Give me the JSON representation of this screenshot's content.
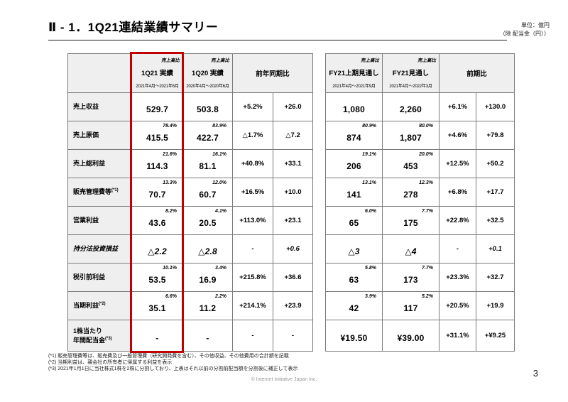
{
  "slide": {
    "title": "Ⅱ - 1．1Q21連結業績サマリー",
    "unit_note_line1": "単位：億円",
    "unit_note_line2": "（除 配当金（円））",
    "copyright": "© Internet Initiative Japan Inc.",
    "page_number": "3"
  },
  "table": {
    "header": {
      "ratio_label": "売上高比",
      "col_1q21": {
        "title": "1Q21 実績",
        "period": "2021年4月～2021年6月"
      },
      "col_1q20": {
        "title": "1Q20 実績",
        "period": "2020年4月～2020年6月"
      },
      "col_yoy": {
        "title": "前年同期比"
      },
      "col_h1fy21": {
        "title": "FY21上期見通し",
        "period": "2021年4月～2021年9月"
      },
      "col_fy21": {
        "title": "FY21見通し",
        "period": "2021年4月～2022年3月"
      },
      "col_prev": {
        "title": "前期比"
      }
    },
    "highlight_color": "#c00000",
    "rows": [
      {
        "label": "売上収益",
        "sup": "",
        "italic": false,
        "q121": {
          "ratio": "",
          "value": "529.7"
        },
        "q120": {
          "ratio": "",
          "value": "503.8"
        },
        "yoy_pct": "+5.2%",
        "yoy_abs": "+26.0",
        "h1fy21": {
          "ratio": "",
          "value": "1,080"
        },
        "fy21": {
          "ratio": "",
          "value": "2,260"
        },
        "prev_pct": "+6.1%",
        "prev_abs": "+130.0"
      },
      {
        "label": "売上原価",
        "sup": "",
        "italic": false,
        "q121": {
          "ratio": "78.4%",
          "value": "415.5"
        },
        "q120": {
          "ratio": "83.9%",
          "value": "422.7"
        },
        "yoy_pct": "△1.7%",
        "yoy_abs": "△7.2",
        "h1fy21": {
          "ratio": "80.9%",
          "value": "874"
        },
        "fy21": {
          "ratio": "80.0%",
          "value": "1,807"
        },
        "prev_pct": "+4.6%",
        "prev_abs": "+79.8"
      },
      {
        "label": "売上総利益",
        "sup": "",
        "italic": false,
        "q121": {
          "ratio": "21.6%",
          "value": "114.3"
        },
        "q120": {
          "ratio": "16.1%",
          "value": "81.1"
        },
        "yoy_pct": "+40.8%",
        "yoy_abs": "+33.1",
        "h1fy21": {
          "ratio": "19.1%",
          "value": "206"
        },
        "fy21": {
          "ratio": "20.0%",
          "value": "453"
        },
        "prev_pct": "+12.5%",
        "prev_abs": "+50.2"
      },
      {
        "label": "販売管理費等",
        "sup": "(*1)",
        "italic": false,
        "q121": {
          "ratio": "13.3%",
          "value": "70.7"
        },
        "q120": {
          "ratio": "12.0%",
          "value": "60.7"
        },
        "yoy_pct": "+16.5%",
        "yoy_abs": "+10.0",
        "h1fy21": {
          "ratio": "13.1%",
          "value": "141"
        },
        "fy21": {
          "ratio": "12.3%",
          "value": "278"
        },
        "prev_pct": "+6.8%",
        "prev_abs": "+17.7"
      },
      {
        "label": "営業利益",
        "sup": "",
        "italic": false,
        "q121": {
          "ratio": "8.2%",
          "value": "43.6"
        },
        "q120": {
          "ratio": "4.1%",
          "value": "20.5"
        },
        "yoy_pct": "+113.0%",
        "yoy_abs": "+23.1",
        "h1fy21": {
          "ratio": "6.0%",
          "value": "65"
        },
        "fy21": {
          "ratio": "7.7%",
          "value": "175"
        },
        "prev_pct": "+22.8%",
        "prev_abs": "+32.5"
      },
      {
        "label": "持分法投資損益",
        "sup": "",
        "italic": true,
        "q121": {
          "ratio": "",
          "value": "△2.2"
        },
        "q120": {
          "ratio": "",
          "value": "△2.8"
        },
        "yoy_pct": "-",
        "yoy_abs": "+0.6",
        "h1fy21": {
          "ratio": "",
          "value": "△3"
        },
        "fy21": {
          "ratio": "",
          "value": "△4"
        },
        "prev_pct": "-",
        "prev_abs": "+0.1"
      },
      {
        "label": "税引前利益",
        "sup": "",
        "italic": false,
        "q121": {
          "ratio": "10.1%",
          "value": "53.5"
        },
        "q120": {
          "ratio": "3.4%",
          "value": "16.9"
        },
        "yoy_pct": "+215.8%",
        "yoy_abs": "+36.6",
        "h1fy21": {
          "ratio": "5.8%",
          "value": "63"
        },
        "fy21": {
          "ratio": "7.7%",
          "value": "173"
        },
        "prev_pct": "+23.3%",
        "prev_abs": "+32.7"
      },
      {
        "label": "当期利益",
        "sup": "(*2)",
        "italic": false,
        "q121": {
          "ratio": "6.6%",
          "value": "35.1"
        },
        "q120": {
          "ratio": "2.2%",
          "value": "11.2"
        },
        "yoy_pct": "+214.1%",
        "yoy_abs": "+23.9",
        "h1fy21": {
          "ratio": "3.9%",
          "value": "42"
        },
        "fy21": {
          "ratio": "5.2%",
          "value": "117"
        },
        "prev_pct": "+20.5%",
        "prev_abs": "+19.9"
      },
      {
        "label": "1株当たり\n年間配当金",
        "sup": "(*3)",
        "italic": false,
        "q121": {
          "ratio": "",
          "value": "-"
        },
        "q120": {
          "ratio": "",
          "value": "-"
        },
        "yoy_pct": "-",
        "yoy_abs": "-",
        "h1fy21": {
          "ratio": "",
          "value": "¥19.50"
        },
        "fy21": {
          "ratio": "",
          "value": "¥39.00"
        },
        "prev_pct": "+31.1%",
        "prev_abs": "+¥9.25"
      }
    ]
  },
  "footnotes": [
    "(*1) 販売管理費等は、販売費及び一般管理費（研究開発費を含む）、その他収益、その他費用の合計額を記載",
    "(*2) 当期利益は、親会社の所有者に帰属する利益を表示",
    "(*3) 2021年1月1日に当社株式1株を2株に分割しており、上表はそれ以前の分割前配当額を分割後に補正して表示"
  ]
}
